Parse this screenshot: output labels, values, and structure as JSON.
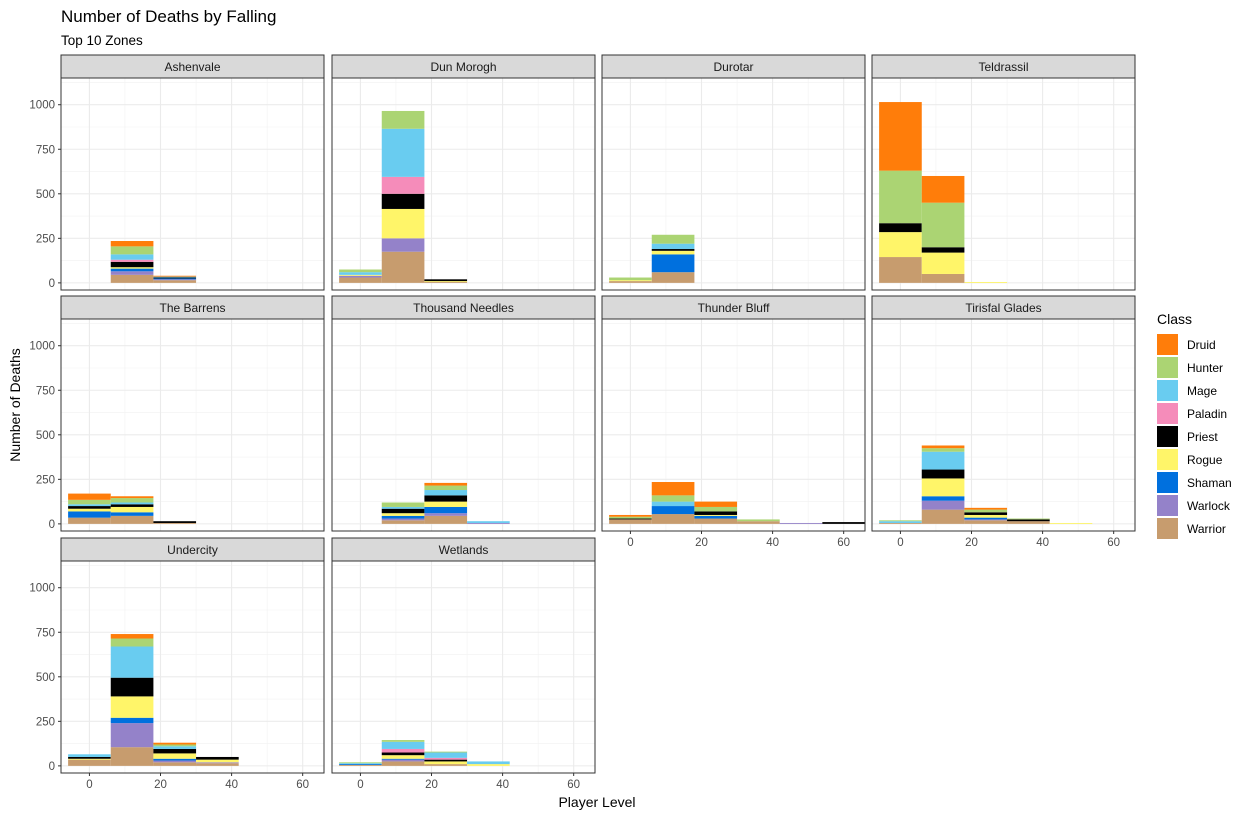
{
  "title": "Number of Deaths by Falling",
  "subtitle": "Top 10 Zones",
  "chart_data": {
    "type": "bar",
    "subtype": "stacked histogram, faceted by zone",
    "title": "Number of Deaths by Falling",
    "subtitle": "Top 10 Zones",
    "xlabel": "Player Level",
    "ylabel": "Number of Deaths",
    "xlim": [
      -8,
      66
    ],
    "ylim": [
      -40,
      1150
    ],
    "x_ticks": [
      0,
      20,
      40,
      60
    ],
    "y_ticks": [
      0,
      250,
      500,
      750,
      1000
    ],
    "bin_width": 12,
    "bin_centers": [
      0,
      12,
      24,
      36,
      48,
      60
    ],
    "grid": true,
    "legend": {
      "title": "Class",
      "position": "right"
    },
    "classes": [
      {
        "name": "Druid",
        "color": "#FF7D0A"
      },
      {
        "name": "Hunter",
        "color": "#ABD473"
      },
      {
        "name": "Mage",
        "color": "#69CCF0"
      },
      {
        "name": "Paladin",
        "color": "#F58CBA"
      },
      {
        "name": "Priest",
        "color": "#000000"
      },
      {
        "name": "Rogue",
        "color": "#FFF569"
      },
      {
        "name": "Shaman",
        "color": "#0070DE"
      },
      {
        "name": "Warlock",
        "color": "#9482C9"
      },
      {
        "name": "Warrior",
        "color": "#C79C6E"
      }
    ],
    "facets": [
      {
        "zone": "Ashenvale",
        "bins": [
          {
            "x": 12,
            "stack": {
              "Warrior": 45,
              "Warlock": 20,
              "Shaman": 15,
              "Rogue": 8,
              "Priest": 30,
              "Paladin": 12,
              "Mage": 30,
              "Hunter": 45,
              "Druid": 30
            }
          },
          {
            "x": 24,
            "stack": {
              "Warrior": 15,
              "Warlock": 5,
              "Shaman": 5,
              "Priest": 5,
              "Mage": 5,
              "Druid": 5
            }
          }
        ]
      },
      {
        "zone": "Dun Morogh",
        "bins": [
          {
            "x": 0,
            "stack": {
              "Warrior": 30,
              "Warlock": 10,
              "Rogue": 5,
              "Mage": 15,
              "Hunter": 15
            }
          },
          {
            "x": 12,
            "stack": {
              "Warrior": 175,
              "Warlock": 75,
              "Rogue": 165,
              "Priest": 85,
              "Paladin": 95,
              "Mage": 270,
              "Hunter": 100
            }
          },
          {
            "x": 24,
            "stack": {
              "Warrior": 5,
              "Priest": 10,
              "Rogue": 5
            }
          }
        ]
      },
      {
        "zone": "Durotar",
        "bins": [
          {
            "x": 0,
            "stack": {
              "Warrior": 10,
              "Rogue": 5,
              "Hunter": 15
            }
          },
          {
            "x": 12,
            "stack": {
              "Warrior": 60,
              "Shaman": 100,
              "Rogue": 20,
              "Priest": 10,
              "Mage": 30,
              "Hunter": 50
            }
          }
        ]
      },
      {
        "zone": "Teldrassil",
        "bins": [
          {
            "x": 0,
            "stack": {
              "Warrior": 145,
              "Rogue": 140,
              "Priest": 50,
              "Hunter": 295,
              "Druid": 385
            }
          },
          {
            "x": 12,
            "stack": {
              "Warrior": 50,
              "Rogue": 120,
              "Priest": 30,
              "Hunter": 250,
              "Druid": 150
            }
          },
          {
            "x": 24,
            "stack": {
              "Rogue": 5
            }
          }
        ]
      },
      {
        "zone": "The Barrens",
        "bins": [
          {
            "x": 0,
            "stack": {
              "Warrior": 35,
              "Shaman": 35,
              "Rogue": 15,
              "Priest": 15,
              "Mage": 10,
              "Hunter": 25,
              "Druid": 35
            }
          },
          {
            "x": 12,
            "stack": {
              "Warrior": 45,
              "Shaman": 20,
              "Rogue": 30,
              "Priest": 15,
              "Mage": 10,
              "Hunter": 25,
              "Druid": 10
            }
          },
          {
            "x": 24,
            "stack": {
              "Warrior": 5,
              "Priest": 10
            }
          }
        ]
      },
      {
        "zone": "Thousand Needles",
        "bins": [
          {
            "x": 12,
            "stack": {
              "Warrior": 20,
              "Warlock": 10,
              "Shaman": 15,
              "Rogue": 15,
              "Priest": 25,
              "Mage": 10,
              "Hunter": 25
            }
          },
          {
            "x": 24,
            "stack": {
              "Warrior": 45,
              "Warlock": 15,
              "Shaman": 35,
              "Rogue": 30,
              "Priest": 35,
              "Mage": 30,
              "Hunter": 25,
              "Druid": 15
            }
          },
          {
            "x": 36,
            "stack": {
              "Warlock": 5,
              "Mage": 10
            }
          }
        ]
      },
      {
        "zone": "Thunder Bluff",
        "bins": [
          {
            "x": 0,
            "stack": {
              "Warrior": 25,
              "Priest": 5,
              "Hunter": 10,
              "Druid": 10
            }
          },
          {
            "x": 12,
            "stack": {
              "Warrior": 55,
              "Shaman": 45,
              "Mage": 25,
              "Hunter": 35,
              "Druid": 75
            }
          },
          {
            "x": 24,
            "stack": {
              "Warrior": 30,
              "Shaman": 15,
              "Priest": 20,
              "Rogue": 5,
              "Hunter": 25,
              "Druid": 30
            }
          },
          {
            "x": 36,
            "stack": {
              "Warrior": 15,
              "Hunter": 10
            }
          },
          {
            "x": 48,
            "stack": {
              "Warlock": 5
            }
          },
          {
            "x": 60,
            "stack": {
              "Priest": 10
            }
          }
        ]
      },
      {
        "zone": "Tirisfal Glades",
        "bins": [
          {
            "x": 0,
            "stack": {
              "Warrior": 5,
              "Mage": 10,
              "Hunter": 5
            }
          },
          {
            "x": 12,
            "stack": {
              "Warrior": 80,
              "Warlock": 50,
              "Shaman": 25,
              "Rogue": 100,
              "Priest": 50,
              "Mage": 100,
              "Hunter": 20,
              "Druid": 15
            }
          },
          {
            "x": 24,
            "stack": {
              "Warrior": 20,
              "Warlock": 5,
              "Shaman": 10,
              "Rogue": 15,
              "Priest": 15,
              "Hunter": 15,
              "Druid": 10
            }
          },
          {
            "x": 36,
            "stack": {
              "Warrior": 15,
              "Priest": 10,
              "Hunter": 5
            }
          },
          {
            "x": 48,
            "stack": {
              "Rogue": 5
            }
          }
        ]
      },
      {
        "zone": "Undercity",
        "bins": [
          {
            "x": 0,
            "stack": {
              "Warrior": 35,
              "Rogue": 5,
              "Priest": 10,
              "Mage": 15
            }
          },
          {
            "x": 12,
            "stack": {
              "Warrior": 105,
              "Warlock": 135,
              "Shaman": 30,
              "Rogue": 120,
              "Priest": 105,
              "Mage": 175,
              "Hunter": 45,
              "Druid": 25
            }
          },
          {
            "x": 24,
            "stack": {
              "Warrior": 20,
              "Warlock": 10,
              "Shaman": 10,
              "Rogue": 30,
              "Priest": 25,
              "Mage": 15,
              "Hunter": 10,
              "Druid": 10
            }
          },
          {
            "x": 36,
            "stack": {
              "Warrior": 15,
              "Warlock": 5,
              "Rogue": 15,
              "Priest": 15
            }
          }
        ]
      },
      {
        "zone": "Wetlands",
        "bins": [
          {
            "x": 0,
            "stack": {
              "Warrior": 5,
              "Shaman": 5,
              "Hunter": 5,
              "Mage": 5
            }
          },
          {
            "x": 12,
            "stack": {
              "Warrior": 25,
              "Warlock": 10,
              "Shaman": 5,
              "Rogue": 20,
              "Priest": 15,
              "Paladin": 20,
              "Mage": 40,
              "Hunter": 10
            }
          },
          {
            "x": 24,
            "stack": {
              "Warrior": 10,
              "Rogue": 15,
              "Priest": 10,
              "Paladin": 10,
              "Mage": 30,
              "Hunter": 5
            }
          },
          {
            "x": 36,
            "stack": {
              "Rogue": 10,
              "Mage": 15
            }
          }
        ]
      }
    ]
  }
}
